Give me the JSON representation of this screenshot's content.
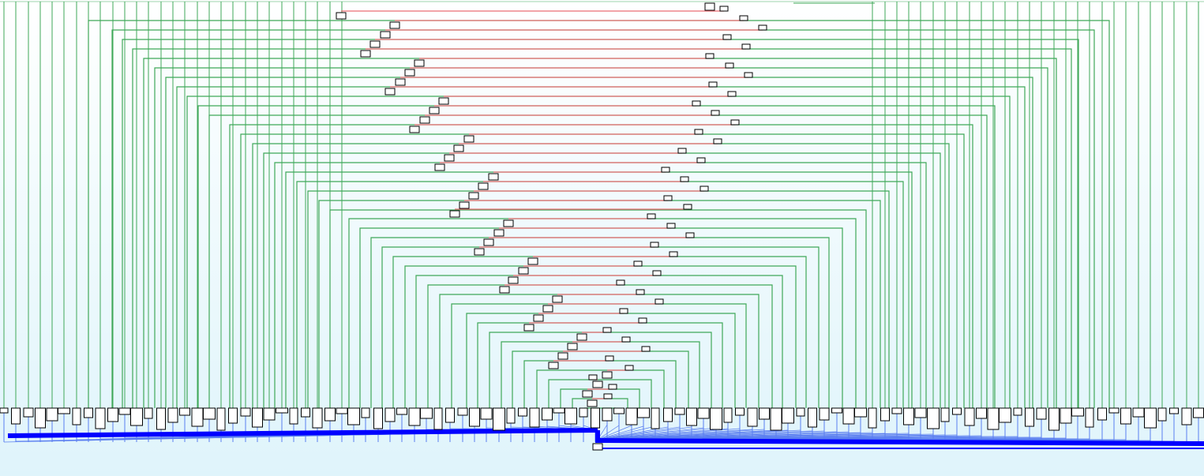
{
  "diagram": {
    "type": "binary-tree-merge-visualization",
    "colors": {
      "background_top": "#ffffff",
      "background_bottom": "#dff4fb",
      "tree_edge": "#3fa858",
      "sibling_link": "#ec6d74",
      "leaf_link": "#5a7ef0",
      "heavy_path": "#0000ff",
      "node_fill": "#ffffff",
      "node_stroke": "#000000"
    },
    "internal_level_count": 42,
    "leaf_count": 100,
    "root_count": 1
  }
}
